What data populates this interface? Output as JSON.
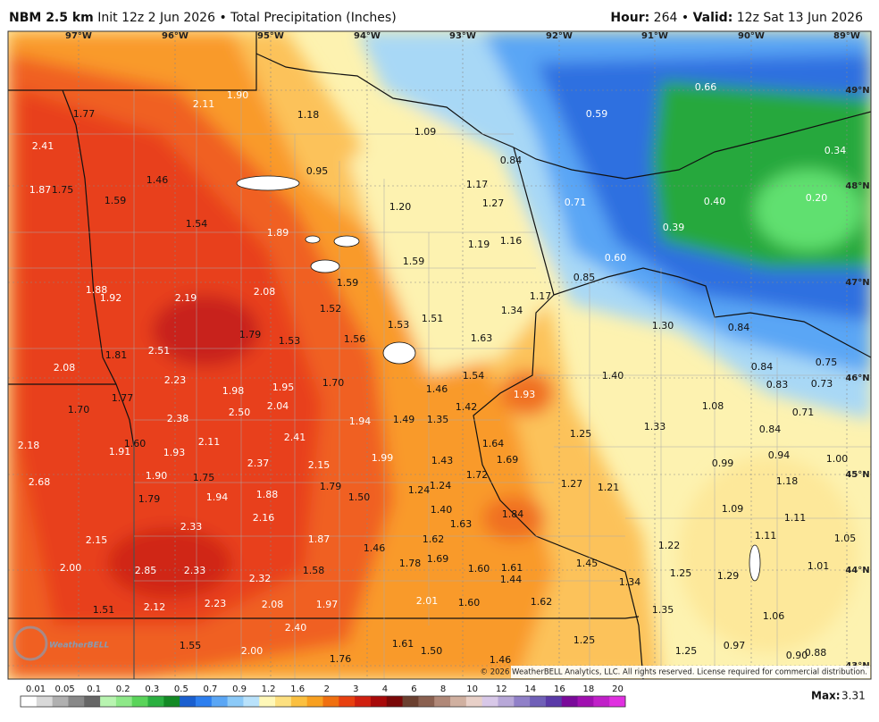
{
  "header": {
    "model": "NBM 2.5 km",
    "init": "Init 12z 2 Jun 2026",
    "separator": "•",
    "field": "Total Precipitation (Inches)",
    "hour_label": "Hour:",
    "hour": "264",
    "valid_label": "Valid:",
    "valid": "12z Sat 13 Jun 2026"
  },
  "map": {
    "lon_labels": [
      "97°W",
      "96°W",
      "95°W",
      "94°W",
      "93°W",
      "92°W",
      "91°W",
      "90°W",
      "89°W"
    ],
    "lat_labels": [
      "49°N",
      "48°N",
      "47°N",
      "46°N",
      "45°N",
      "44°N",
      "43°N"
    ],
    "labels": [
      "1.77",
      "2.11",
      "1.90",
      "2.41",
      "1.18",
      "1.09",
      "0.84",
      "0.59",
      "0.66",
      "0.34",
      "0.95",
      "1.87",
      "1.75",
      "1.59",
      "1.46",
      "1.17",
      "1.27",
      "1.20",
      "0.71",
      "0.40",
      "0.20",
      "1.54",
      "1.89",
      "1.19",
      "1.16",
      "0.39",
      "1.59",
      "0.60",
      "0.85",
      "1.59",
      "1.88",
      "1.92",
      "2.19",
      "2.08",
      "1.52",
      "1.17",
      "1.34",
      "1.53",
      "1.51",
      "1.30",
      "0.84",
      "1.79",
      "1.53",
      "1.56",
      "1.63",
      "2.51",
      "1.81",
      "2.08",
      "0.84",
      "0.75",
      "1.54",
      "1.40",
      "2.23",
      "1.98",
      "1.95",
      "1.70",
      "1.46",
      "1.93",
      "0.83",
      "0.73",
      "1.77",
      "1.70",
      "2.38",
      "2.50",
      "2.04",
      "1.94",
      "1.49",
      "1.35",
      "1.42",
      "1.08",
      "0.71",
      "1.33",
      "1.25",
      "0.84",
      "2.18",
      "1.60",
      "1.91",
      "1.93",
      "2.11",
      "2.41",
      "1.64",
      "1.69",
      "1.99",
      "1.43",
      "2.37",
      "2.15",
      "0.94",
      "1.00",
      "0.99",
      "1.72",
      "2.68",
      "1.90",
      "1.75",
      "1.79",
      "1.24",
      "1.24",
      "1.27",
      "1.21",
      "1.18",
      "1.79",
      "1.94",
      "1.88",
      "1.50",
      "1.40",
      "1.09",
      "1.84",
      "2.16",
      "1.63",
      "1.11",
      "2.33",
      "1.87",
      "1.62",
      "1.11",
      "1.05",
      "2.15",
      "1.46",
      "1.22",
      "1.69",
      "1.78",
      "1.45",
      "2.00",
      "2.85",
      "2.33",
      "1.58",
      "1.60",
      "1.61",
      "1.01",
      "1.25",
      "1.29",
      "2.32",
      "1.44",
      "1.34",
      "1.51",
      "2.12",
      "2.23",
      "2.08",
      "1.97",
      "2.01",
      "1.60",
      "1.62",
      "1.35",
      "1.06",
      "2.40",
      "1.25",
      "1.55",
      "2.00",
      "1.61",
      "1.50",
      "0.97",
      "1.25",
      "0.88",
      "0.90",
      "1.76",
      "1.46"
    ],
    "copyright": "© 2026 WeatherBELL Analytics, LLC. All rights reserved. License required for commercial distribution.",
    "logo": "WeatherBELL"
  },
  "legend": {
    "labels": [
      "0.01",
      "0.05",
      "0.1",
      "0.2",
      "0.3",
      "0.5",
      "0.7",
      "0.9",
      "1.2",
      "1.6",
      "2",
      "3",
      "4",
      "6",
      "8",
      "10",
      "12",
      "14",
      "16",
      "18",
      "20"
    ],
    "colors": [
      "#ffffff",
      "#d9d9d9",
      "#b0b0b0",
      "#888888",
      "#666666",
      "#b8f4b0",
      "#8ee888",
      "#5ad45a",
      "#2bb040",
      "#138a25",
      "#1a5fd0",
      "#2d7ff0",
      "#5aa6f5",
      "#8ccaf8",
      "#b9e2fb",
      "#fff8b8",
      "#fde080",
      "#fbc040",
      "#f8a020",
      "#f07010",
      "#e84010",
      "#d02010",
      "#a80a0a",
      "#7a0808",
      "#6b4030",
      "#8a6050",
      "#b08878",
      "#d0b0a0",
      "#e8d0c8",
      "#d8c8e8",
      "#b8a8d8",
      "#9080c8",
      "#7060b8",
      "#5a3aa8",
      "#7a0a9a",
      "#a010b0",
      "#c020c8",
      "#e030e0"
    ],
    "max_label": "Max:",
    "max": "3.31"
  }
}
